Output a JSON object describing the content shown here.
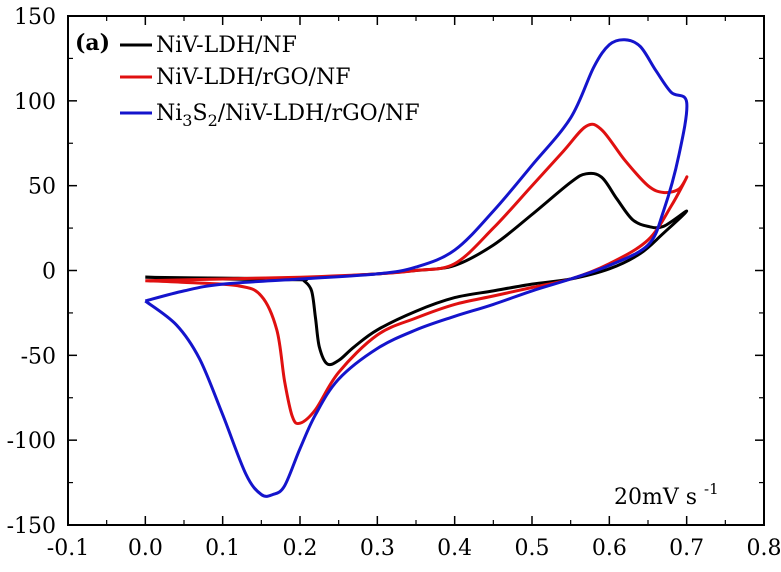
{
  "chart_data": {
    "type": "line",
    "panel_label": "(a)",
    "annotation": {
      "main": "20mV s",
      "superscript": "-1"
    },
    "xlim": [
      -0.1,
      0.8
    ],
    "ylim": [
      -150,
      150
    ],
    "x_ticks": [
      -0.1,
      0.0,
      0.1,
      0.2,
      0.3,
      0.4,
      0.5,
      0.6,
      0.7,
      0.8
    ],
    "x_tick_labels": [
      "-0.1",
      "0.0",
      "0.1",
      "0.2",
      "0.3",
      "0.4",
      "0.5",
      "0.6",
      "0.7",
      "0.8"
    ],
    "y_ticks": [
      -150,
      -100,
      -50,
      0,
      50,
      100,
      150
    ],
    "y_tick_labels": [
      "-150",
      "-100",
      "-50",
      "0",
      "50",
      "100",
      "150"
    ],
    "legend_position": "top-left",
    "series": [
      {
        "name": "NiV-LDH/NF",
        "legend_parts": [
          [
            "NiV-LDH/NF",
            ""
          ]
        ],
        "color": "#000000",
        "points": [
          [
            0.0,
            -4
          ],
          [
            0.1,
            -4.5
          ],
          [
            0.2,
            -4.5
          ],
          [
            0.3,
            -2
          ],
          [
            0.35,
            0
          ],
          [
            0.4,
            3
          ],
          [
            0.45,
            15
          ],
          [
            0.5,
            33
          ],
          [
            0.55,
            52
          ],
          [
            0.57,
            57
          ],
          [
            0.59,
            55
          ],
          [
            0.61,
            42
          ],
          [
            0.63,
            30
          ],
          [
            0.65,
            26
          ],
          [
            0.67,
            26
          ],
          [
            0.7,
            35
          ],
          [
            0.67,
            22
          ],
          [
            0.64,
            10
          ],
          [
            0.6,
            1
          ],
          [
            0.55,
            -5
          ],
          [
            0.5,
            -8
          ],
          [
            0.45,
            -12
          ],
          [
            0.4,
            -16
          ],
          [
            0.35,
            -24
          ],
          [
            0.3,
            -35
          ],
          [
            0.27,
            -45
          ],
          [
            0.25,
            -53
          ],
          [
            0.235,
            -55
          ],
          [
            0.225,
            -45
          ],
          [
            0.22,
            -28
          ],
          [
            0.215,
            -12
          ],
          [
            0.205,
            -6
          ],
          [
            0.2,
            -5.5
          ],
          [
            0.1,
            -5
          ],
          [
            0.0,
            -4
          ]
        ]
      },
      {
        "name": "NiV-LDH/rGO/NF",
        "legend_parts": [
          [
            "NiV-LDH/rGO/NF",
            ""
          ]
        ],
        "color": "#e01010",
        "points": [
          [
            0.0,
            -6
          ],
          [
            0.1,
            -5
          ],
          [
            0.2,
            -4
          ],
          [
            0.3,
            -2
          ],
          [
            0.35,
            0
          ],
          [
            0.4,
            4
          ],
          [
            0.45,
            25
          ],
          [
            0.5,
            50
          ],
          [
            0.54,
            70
          ],
          [
            0.57,
            85
          ],
          [
            0.59,
            83
          ],
          [
            0.62,
            65
          ],
          [
            0.65,
            50
          ],
          [
            0.67,
            46
          ],
          [
            0.69,
            48
          ],
          [
            0.7,
            55
          ],
          [
            0.68,
            38
          ],
          [
            0.65,
            18
          ],
          [
            0.6,
            4
          ],
          [
            0.55,
            -5
          ],
          [
            0.5,
            -10
          ],
          [
            0.45,
            -15
          ],
          [
            0.4,
            -20
          ],
          [
            0.35,
            -28
          ],
          [
            0.3,
            -38
          ],
          [
            0.25,
            -60
          ],
          [
            0.22,
            -82
          ],
          [
            0.2,
            -90
          ],
          [
            0.19,
            -86
          ],
          [
            0.18,
            -65
          ],
          [
            0.17,
            -35
          ],
          [
            0.15,
            -15
          ],
          [
            0.12,
            -9
          ],
          [
            0.05,
            -7
          ],
          [
            0.0,
            -6
          ]
        ]
      },
      {
        "name": "Ni3S2/NiV-LDH/rGO/NF",
        "legend_parts": [
          [
            "Ni",
            ""
          ],
          [
            "3",
            "sub"
          ],
          [
            "S",
            ""
          ],
          [
            "2",
            "sub"
          ],
          [
            "/NiV-LDH/rGO/NF",
            ""
          ]
        ],
        "color": "#1414cc",
        "points": [
          [
            0.0,
            -18
          ],
          [
            0.05,
            -12
          ],
          [
            0.1,
            -8
          ],
          [
            0.2,
            -5
          ],
          [
            0.3,
            -2
          ],
          [
            0.35,
            2
          ],
          [
            0.4,
            12
          ],
          [
            0.45,
            35
          ],
          [
            0.5,
            62
          ],
          [
            0.55,
            90
          ],
          [
            0.58,
            120
          ],
          [
            0.6,
            133
          ],
          [
            0.62,
            136
          ],
          [
            0.64,
            132
          ],
          [
            0.66,
            118
          ],
          [
            0.68,
            105
          ],
          [
            0.7,
            99
          ],
          [
            0.69,
            68
          ],
          [
            0.67,
            35
          ],
          [
            0.65,
            15
          ],
          [
            0.6,
            3
          ],
          [
            0.55,
            -5
          ],
          [
            0.5,
            -12
          ],
          [
            0.45,
            -20
          ],
          [
            0.4,
            -27
          ],
          [
            0.35,
            -35
          ],
          [
            0.3,
            -46
          ],
          [
            0.25,
            -64
          ],
          [
            0.22,
            -85
          ],
          [
            0.2,
            -105
          ],
          [
            0.18,
            -127
          ],
          [
            0.165,
            -132
          ],
          [
            0.15,
            -132
          ],
          [
            0.13,
            -120
          ],
          [
            0.1,
            -85
          ],
          [
            0.07,
            -52
          ],
          [
            0.04,
            -32
          ],
          [
            0.0,
            -18
          ]
        ]
      }
    ]
  }
}
